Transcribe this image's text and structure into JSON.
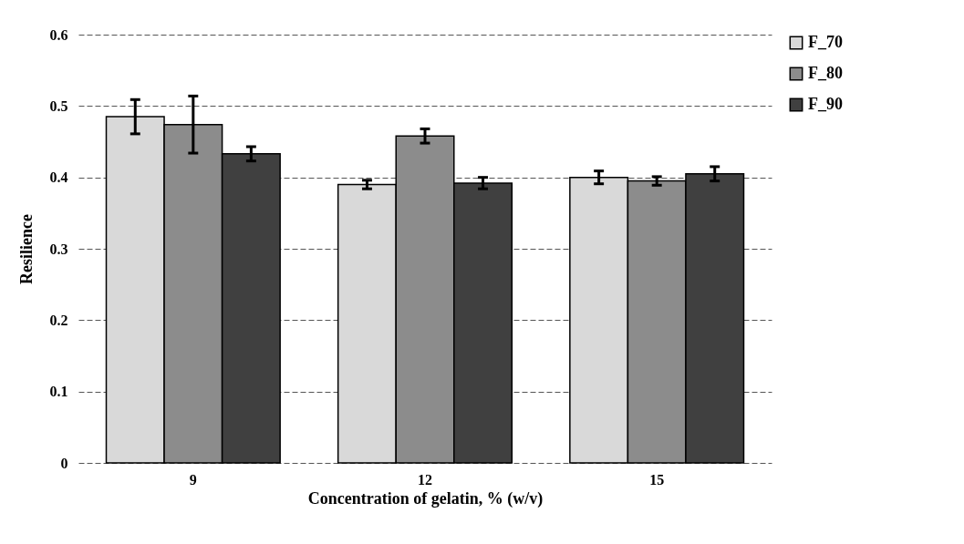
{
  "chart_data": {
    "type": "bar",
    "xlabel": "Concentration of gelatin, % (w/v)",
    "ylabel": "Resilience",
    "categories": [
      "9",
      "12",
      "15"
    ],
    "series": [
      {
        "name": "F_70",
        "color": "#d9d9d9",
        "values": [
          0.485,
          0.39,
          0.4
        ],
        "errors": [
          0.024,
          0.006,
          0.009
        ]
      },
      {
        "name": "F_80",
        "color": "#8c8c8c",
        "values": [
          0.474,
          0.458,
          0.395
        ],
        "errors": [
          0.04,
          0.01,
          0.006
        ]
      },
      {
        "name": "F_90",
        "color": "#404040",
        "values": [
          0.433,
          0.392,
          0.405
        ],
        "errors": [
          0.01,
          0.008,
          0.01
        ]
      }
    ],
    "ylim": [
      0,
      0.6
    ],
    "yticks": [
      0,
      0.1,
      0.2,
      0.3,
      0.4,
      0.5,
      0.6
    ],
    "grid": "y",
    "legend": "right"
  }
}
